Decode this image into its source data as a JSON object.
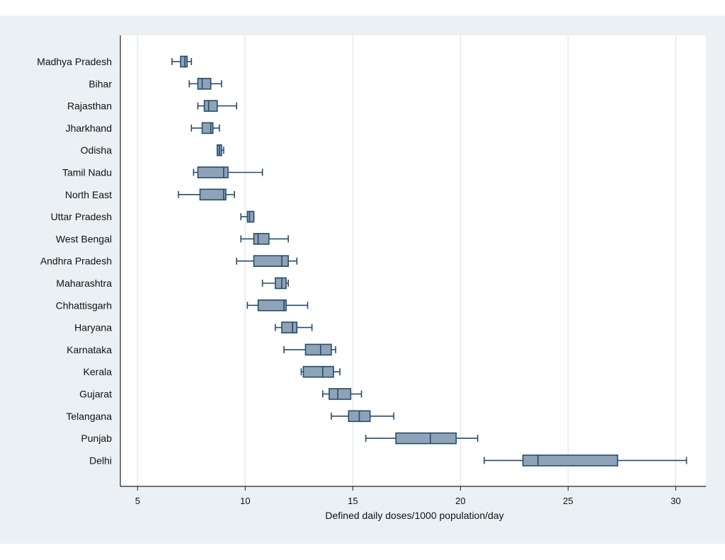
{
  "colors": {
    "outer_background": "#eaf0f3",
    "plot_background": "#ffffff",
    "box_fill": "#8fa3b8",
    "box_stroke": "#284b68",
    "grid": "#e3e9ee",
    "axis": "#222222"
  },
  "chart_data": {
    "type": "boxplot",
    "orientation": "horizontal",
    "title": "",
    "xlabel": "Defined daily doses/1000 population/day",
    "ylabel": "",
    "xlim": [
      4.2,
      31.4
    ],
    "xticks": [
      5,
      10,
      15,
      20,
      25,
      30
    ],
    "grid": "vertical",
    "legend": "none",
    "series": [
      {
        "name": "Madhya Pradesh",
        "min": 6.6,
        "q1": 7.0,
        "median": 7.2,
        "q3": 7.3,
        "max": 7.5
      },
      {
        "name": "Bihar",
        "min": 7.4,
        "q1": 7.8,
        "median": 8.0,
        "q3": 8.4,
        "max": 8.9
      },
      {
        "name": "Rajasthan",
        "min": 7.8,
        "q1": 8.1,
        "median": 8.3,
        "q3": 8.7,
        "max": 9.6
      },
      {
        "name": "Jharkhand",
        "min": 7.5,
        "q1": 8.0,
        "median": 8.4,
        "q3": 8.5,
        "max": 8.8
      },
      {
        "name": "Odisha",
        "min": 8.7,
        "q1": 8.7,
        "median": 8.8,
        "q3": 8.9,
        "max": 9.0
      },
      {
        "name": "Tamil Nadu",
        "min": 7.6,
        "q1": 7.8,
        "median": 9.0,
        "q3": 9.2,
        "max": 10.8
      },
      {
        "name": "North East",
        "min": 6.9,
        "q1": 7.9,
        "median": 9.0,
        "q3": 9.1,
        "max": 9.5
      },
      {
        "name": "Uttar Pradesh",
        "min": 9.8,
        "q1": 10.1,
        "median": 10.2,
        "q3": 10.4,
        "max": 10.4
      },
      {
        "name": "West Bengal",
        "min": 9.8,
        "q1": 10.4,
        "median": 10.6,
        "q3": 11.1,
        "max": 12.0
      },
      {
        "name": "Andhra Pradesh",
        "min": 9.6,
        "q1": 10.4,
        "median": 11.7,
        "q3": 12.0,
        "max": 12.4
      },
      {
        "name": "Maharashtra",
        "min": 10.8,
        "q1": 11.4,
        "median": 11.7,
        "q3": 11.9,
        "max": 12.0
      },
      {
        "name": "Chhattisgarh",
        "min": 10.1,
        "q1": 10.6,
        "median": 11.8,
        "q3": 11.9,
        "max": 12.9
      },
      {
        "name": "Haryana",
        "min": 11.4,
        "q1": 11.7,
        "median": 12.2,
        "q3": 12.4,
        "max": 13.1
      },
      {
        "name": "Karnataka",
        "min": 11.8,
        "q1": 12.8,
        "median": 13.5,
        "q3": 14.0,
        "max": 14.2
      },
      {
        "name": "Kerala",
        "min": 12.6,
        "q1": 12.7,
        "median": 13.6,
        "q3": 14.1,
        "max": 14.4
      },
      {
        "name": "Gujarat",
        "min": 13.6,
        "q1": 13.9,
        "median": 14.3,
        "q3": 14.9,
        "max": 15.4
      },
      {
        "name": "Telangana",
        "min": 14.0,
        "q1": 14.8,
        "median": 15.3,
        "q3": 15.8,
        "max": 16.9
      },
      {
        "name": "Punjab",
        "min": 15.6,
        "q1": 17.0,
        "median": 18.6,
        "q3": 19.8,
        "max": 20.8
      },
      {
        "name": "Delhi",
        "min": 21.1,
        "q1": 22.9,
        "median": 23.6,
        "q3": 27.3,
        "max": 30.5
      }
    ]
  }
}
